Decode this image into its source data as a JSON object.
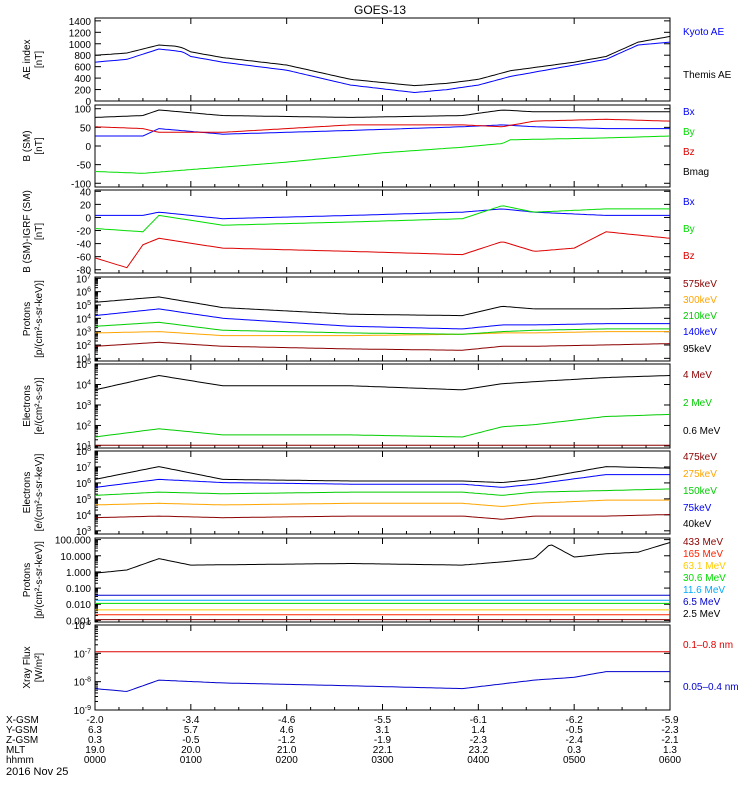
{
  "title": "GOES-13",
  "date_label": "2016 Nov 25",
  "chart_data": [
    {
      "type": "line",
      "ylabel": [
        "AE index",
        "[nT]"
      ],
      "yticks": [
        "1400",
        "1200",
        "1000",
        "800",
        "600",
        "400",
        "200",
        "0"
      ],
      "ylim": [
        0,
        1450
      ],
      "scale": "linear",
      "series": [
        {
          "name": "Kyoto AE",
          "color": "#0000ff",
          "x": [
            0,
            20,
            40,
            50,
            55,
            60,
            80,
            120,
            160,
            200,
            220,
            240,
            260,
            300,
            320,
            340,
            360
          ],
          "values": [
            700,
            750,
            930,
            900,
            880,
            800,
            700,
            560,
            300,
            170,
            220,
            300,
            450,
            650,
            750,
            1000,
            1050
          ]
        },
        {
          "name": "Themis AE",
          "color": "#000000",
          "x": [
            0,
            20,
            40,
            50,
            55,
            60,
            80,
            120,
            160,
            200,
            220,
            240,
            260,
            300,
            320,
            340,
            360
          ],
          "values": [
            820,
            860,
            1000,
            980,
            950,
            880,
            780,
            650,
            400,
            290,
            330,
            400,
            550,
            700,
            800,
            1050,
            1150
          ]
        }
      ]
    },
    {
      "type": "line",
      "ylabel": [
        "B (SM)",
        "[nT]"
      ],
      "yticks": [
        "100",
        "50",
        "0",
        "-50",
        "-100"
      ],
      "ylim": [
        -110,
        110
      ],
      "scale": "linear",
      "series": [
        {
          "name": "Bx",
          "color": "#0000ff",
          "x": [
            0,
            30,
            40,
            80,
            160,
            230,
            255,
            275,
            320,
            360
          ],
          "values": [
            30,
            30,
            50,
            35,
            45,
            55,
            60,
            55,
            50,
            50
          ]
        },
        {
          "name": "By",
          "color": "#00dd00",
          "x": [
            0,
            30,
            60,
            120,
            180,
            230,
            255,
            260,
            320,
            360
          ],
          "values": [
            -65,
            -70,
            -60,
            -40,
            -15,
            0,
            10,
            20,
            25,
            30
          ]
        },
        {
          "name": "Bz",
          "color": "#dd0000",
          "x": [
            0,
            30,
            40,
            80,
            160,
            230,
            255,
            275,
            320,
            360
          ],
          "values": [
            55,
            50,
            40,
            40,
            60,
            60,
            55,
            70,
            75,
            70
          ]
        },
        {
          "name": "Bmag",
          "color": "#000000",
          "x": [
            0,
            30,
            40,
            80,
            160,
            230,
            255,
            275,
            320,
            360
          ],
          "values": [
            80,
            85,
            100,
            85,
            80,
            85,
            100,
            95,
            95,
            95
          ]
        }
      ]
    },
    {
      "type": "line",
      "ylabel": [
        "B (SM)-IGRF (SM)",
        "[nT]"
      ],
      "yticks": [
        "40",
        "20",
        "0",
        "-20",
        "-40",
        "-60",
        "-80"
      ],
      "ylim": [
        -85,
        42
      ],
      "scale": "linear",
      "series": [
        {
          "name": "Bx",
          "color": "#0000ff",
          "x": [
            0,
            30,
            40,
            80,
            160,
            230,
            255,
            275,
            320,
            360
          ],
          "values": [
            5,
            5,
            10,
            0,
            5,
            10,
            15,
            10,
            5,
            5
          ]
        },
        {
          "name": "By",
          "color": "#00dd00",
          "x": [
            0,
            30,
            40,
            80,
            160,
            230,
            255,
            275,
            320,
            360
          ],
          "values": [
            -15,
            -20,
            5,
            -10,
            -5,
            0,
            20,
            10,
            15,
            15
          ]
        },
        {
          "name": "Bz",
          "color": "#dd0000",
          "x": [
            0,
            20,
            30,
            40,
            80,
            160,
            230,
            255,
            275,
            300,
            320,
            360
          ],
          "values": [
            -60,
            -75,
            -40,
            -30,
            -45,
            -50,
            -55,
            -35,
            -50,
            -45,
            -20,
            -30
          ]
        }
      ]
    },
    {
      "type": "line",
      "ylabel": [
        "Protons",
        "[p/(cm²-s-sr-keV)]"
      ],
      "yticks_exp": [
        7,
        6,
        5,
        4,
        3,
        2,
        1
      ],
      "ylim_exp": [
        0.8,
        7.1
      ],
      "scale": "log",
      "series": [
        {
          "name": "575keV",
          "color": "#8b0000",
          "x": [
            0,
            40,
            80,
            160,
            230,
            255,
            275,
            320,
            360
          ],
          "exp": [
            2.0,
            2.3,
            2.0,
            1.8,
            1.7,
            2.0,
            2.0,
            2.1,
            2.2
          ]
        },
        {
          "name": "300keV",
          "color": "#ffa500",
          "x": [
            0,
            40,
            80,
            160,
            230,
            255,
            275,
            320,
            360
          ],
          "exp": [
            3.0,
            3.1,
            2.8,
            2.8,
            2.9,
            3.0,
            3.0,
            3.1,
            3.1
          ]
        },
        {
          "name": "210keV",
          "color": "#00cc00",
          "x": [
            0,
            40,
            80,
            160,
            230,
            255,
            275,
            320,
            360
          ],
          "exp": [
            3.5,
            3.8,
            3.2,
            3.0,
            2.9,
            3.1,
            3.2,
            3.3,
            3.3
          ]
        },
        {
          "name": "140keV",
          "color": "#0000ff",
          "x": [
            0,
            40,
            80,
            160,
            230,
            255,
            275,
            320,
            360
          ],
          "exp": [
            4.3,
            4.8,
            4.1,
            3.5,
            3.3,
            3.6,
            3.6,
            3.7,
            3.7
          ]
        },
        {
          "name": "95keV",
          "color": "#000000",
          "x": [
            0,
            40,
            80,
            160,
            230,
            255,
            275,
            320,
            360
          ],
          "exp": [
            5.3,
            5.7,
            4.9,
            4.4,
            4.3,
            5.0,
            4.8,
            4.8,
            4.9
          ]
        }
      ]
    },
    {
      "type": "line",
      "ylabel": [
        "Electrons",
        "[e/(cm²-s-sr)]"
      ],
      "yticks_exp": [
        5,
        4,
        3,
        2,
        1
      ],
      "ylim_exp": [
        0.9,
        5.0
      ],
      "scale": "log",
      "series": [
        {
          "name": "4 MeV",
          "color": "#8b0000",
          "x": [
            0,
            360
          ],
          "exp": [
            1.1,
            1.1
          ]
        },
        {
          "name": "2 MeV",
          "color": "#00cc00",
          "x": [
            0,
            40,
            80,
            160,
            230,
            255,
            275,
            320,
            360
          ],
          "exp": [
            1.5,
            1.9,
            1.6,
            1.6,
            1.5,
            2.0,
            2.1,
            2.5,
            2.6
          ]
        },
        {
          "name": "0.6 MeV",
          "color": "#000000",
          "x": [
            0,
            40,
            80,
            160,
            230,
            255,
            275,
            320,
            360
          ],
          "exp": [
            3.8,
            4.5,
            4.0,
            4.0,
            3.8,
            4.1,
            4.2,
            4.4,
            4.5
          ]
        }
      ]
    },
    {
      "type": "line",
      "ylabel": [
        "Electrons",
        "[e/(cm²-s-sr-keV)]"
      ],
      "yticks_exp": [
        8,
        7,
        6,
        5,
        4,
        3
      ],
      "ylim_exp": [
        2.8,
        8.0
      ],
      "scale": "log",
      "series": [
        {
          "name": "475keV",
          "color": "#8b0000",
          "x": [
            0,
            40,
            80,
            160,
            230,
            255,
            275,
            320,
            360
          ],
          "exp": [
            3.9,
            4.0,
            3.9,
            4.0,
            4.0,
            3.8,
            4.0,
            4.0,
            4.1
          ]
        },
        {
          "name": "275keV",
          "color": "#ffa500",
          "x": [
            0,
            40,
            80,
            160,
            230,
            255,
            275,
            320,
            360
          ],
          "exp": [
            4.7,
            4.8,
            4.7,
            4.8,
            4.8,
            4.6,
            4.8,
            5.0,
            5.0
          ]
        },
        {
          "name": "150keV",
          "color": "#00cc00",
          "x": [
            0,
            40,
            80,
            160,
            230,
            255,
            275,
            320,
            360
          ],
          "exp": [
            5.3,
            5.5,
            5.4,
            5.5,
            5.5,
            5.3,
            5.5,
            5.6,
            5.7
          ]
        },
        {
          "name": "75keV",
          "color": "#0000ff",
          "x": [
            0,
            40,
            80,
            160,
            230,
            255,
            275,
            320,
            360
          ],
          "exp": [
            5.8,
            6.3,
            6.1,
            6.0,
            6.0,
            5.8,
            6.0,
            6.6,
            6.6
          ]
        },
        {
          "name": "40keV",
          "color": "#000000",
          "x": [
            0,
            40,
            80,
            160,
            230,
            255,
            275,
            320,
            360
          ],
          "exp": [
            6.3,
            7.1,
            6.3,
            6.2,
            6.2,
            6.1,
            6.3,
            7.1,
            7.0
          ]
        }
      ]
    },
    {
      "type": "line",
      "ylabel": [
        "Protons",
        "[p/(cm²-s-sr-keV)]"
      ],
      "yticks": [
        "100.000",
        "10.000",
        "1.000",
        "0.100",
        "0.010",
        "0.001"
      ],
      "yticks_exp": [
        2,
        1,
        0,
        -1,
        -2,
        -3
      ],
      "ylim_exp": [
        -3.1,
        2.1
      ],
      "scale": "log",
      "series": [
        {
          "name": "433 MeV",
          "color": "#8b0000",
          "x": [
            0,
            360
          ],
          "exp": [
            -2.6,
            -2.6
          ]
        },
        {
          "name": "165 MeV",
          "color": "#ff2200",
          "x": [
            0,
            360
          ],
          "exp": [
            -2.3,
            -2.3
          ]
        },
        {
          "name": "63.1 MeV",
          "color": "#ffcc00",
          "x": [
            0,
            360
          ],
          "exp": [
            -2.0,
            -2.0
          ]
        },
        {
          "name": "30.6 MeV",
          "color": "#00dd00",
          "x": [
            0,
            360
          ],
          "exp": [
            -1.6,
            -1.6
          ]
        },
        {
          "name": "11.6 MeV",
          "color": "#00aaff",
          "x": [
            0,
            360
          ],
          "exp": [
            -1.4,
            -1.4
          ]
        },
        {
          "name": "6.5 MeV",
          "color": "#0000cc",
          "x": [
            0,
            360
          ],
          "exp": [
            -1.1,
            -1.1
          ]
        },
        {
          "name": "2.5 MeV",
          "color": "#000000",
          "x": [
            0,
            20,
            40,
            60,
            160,
            230,
            255,
            275,
            285,
            300,
            320,
            340,
            360
          ],
          "exp": [
            0.0,
            0.2,
            0.9,
            0.5,
            0.6,
            0.5,
            0.7,
            0.9,
            1.8,
            1.0,
            1.2,
            1.3,
            1.9
          ]
        }
      ]
    },
    {
      "type": "line",
      "ylabel": [
        "Xray Flux",
        "[W/m²]"
      ],
      "yticks_exp": [
        -6,
        -7,
        -8,
        -9
      ],
      "ylim_exp": [
        -9.0,
        -6.0
      ],
      "scale": "log",
      "series": [
        {
          "name": "0.1–0.8 nm",
          "color": "#dd0000",
          "x": [
            0,
            360
          ],
          "exp": [
            -6.9,
            -6.9
          ]
        },
        {
          "name": "0.05–0.4 nm",
          "color": "#0000cc",
          "x": [
            0,
            20,
            40,
            80,
            160,
            230,
            275,
            300,
            320,
            360
          ],
          "exp": [
            -8.2,
            -8.3,
            -7.9,
            -8.0,
            -8.1,
            -8.2,
            -7.9,
            -7.8,
            -7.6,
            -7.6
          ]
        }
      ]
    }
  ],
  "xaxis": {
    "labels": [
      "X-GSM",
      "Y-GSM",
      "Z-GSM",
      "MLT",
      "hhmm"
    ],
    "rows": [
      [
        "-2.0",
        "-3.4",
        "-4.6",
        "-5.5",
        "-6.1",
        "-6.2",
        "-5.9"
      ],
      [
        "6.3",
        "5.7",
        "4.6",
        "3.1",
        "1.4",
        "-0.5",
        "-2.3"
      ],
      [
        "0.3",
        "-0.5",
        "-1.2",
        "-1.9",
        "-2.3",
        "-2.4",
        "-2.1"
      ],
      [
        "19.0",
        "20.0",
        "21.0",
        "22.1",
        "23.2",
        "0.3",
        "1.3"
      ],
      [
        "0000",
        "0100",
        "0200",
        "0300",
        "0400",
        "0500",
        "0600"
      ]
    ]
  }
}
